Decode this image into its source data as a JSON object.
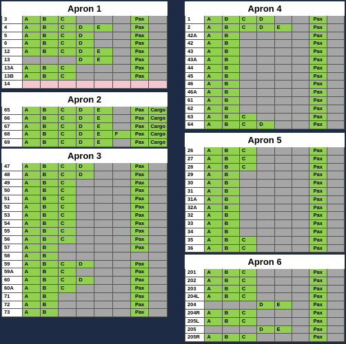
{
  "aprons": [
    {
      "title": "Apron 1",
      "rows": [
        {
          "cells": [
            "3",
            "A",
            "B",
            "C",
            null,
            null,
            null,
            "Pax",
            null
          ]
        },
        {
          "cells": [
            "4",
            "A",
            "B",
            "C",
            "D",
            "E",
            null,
            "Pax",
            null
          ]
        },
        {
          "cells": [
            "5",
            "A",
            "B",
            "C",
            "D",
            null,
            null,
            "Pax",
            null
          ]
        },
        {
          "cells": [
            "6",
            "A",
            "B",
            "C",
            "D",
            null,
            null,
            "Pax",
            null
          ]
        },
        {
          "cells": [
            "12",
            "A",
            "B",
            "C",
            "D",
            "E",
            null,
            "Pax",
            null
          ]
        },
        {
          "cells": [
            "13",
            null,
            null,
            null,
            "D",
            "E",
            null,
            "Pax",
            null
          ]
        },
        {
          "cells": [
            "13A",
            "A",
            "B",
            "C",
            null,
            null,
            null,
            "Pax",
            null
          ]
        },
        {
          "cells": [
            "13B",
            "A",
            "B",
            "C",
            null,
            null,
            null,
            "Pax",
            null
          ]
        },
        {
          "cells": [
            "14",
            null,
            null,
            null,
            null,
            null,
            null,
            null,
            null
          ],
          "fill": "#f4c6ce"
        }
      ]
    },
    {
      "title": "Apron 2",
      "rows": [
        {
          "cells": [
            "65",
            "A",
            "B",
            "C",
            "D",
            "E",
            null,
            "Pax",
            "Cargo"
          ]
        },
        {
          "cells": [
            "66",
            "A",
            "B",
            "C",
            "D",
            "E",
            null,
            "Pax",
            "Cargo"
          ]
        },
        {
          "cells": [
            "67",
            "A",
            "B",
            "C",
            "D",
            "E",
            null,
            "Pax",
            "Cargo"
          ]
        },
        {
          "cells": [
            "68",
            "A",
            "B",
            "C",
            "D",
            "E",
            "F",
            "Pax",
            "Cargo"
          ]
        },
        {
          "cells": [
            "69",
            "A",
            "B",
            "C",
            "D",
            "E",
            null,
            "Pax",
            "Cargo"
          ]
        }
      ]
    },
    {
      "title": "Apron 3",
      "rows": [
        {
          "cells": [
            "47",
            "A",
            "B",
            "C",
            "D",
            null,
            null,
            "Pax",
            null
          ]
        },
        {
          "cells": [
            "48",
            "A",
            "B",
            "C",
            "D",
            null,
            null,
            "Pax",
            null
          ]
        },
        {
          "cells": [
            "49",
            "A",
            "B",
            "C",
            null,
            null,
            null,
            "Pax",
            null
          ]
        },
        {
          "cells": [
            "50",
            "A",
            "B",
            "C",
            null,
            null,
            null,
            "Pax",
            null
          ]
        },
        {
          "cells": [
            "51",
            "A",
            "B",
            "C",
            null,
            null,
            null,
            "Pax",
            null
          ]
        },
        {
          "cells": [
            "52",
            "A",
            "B",
            "C",
            null,
            null,
            null,
            "Pax",
            null
          ]
        },
        {
          "cells": [
            "53",
            "A",
            "B",
            "C",
            null,
            null,
            null,
            "Pax",
            null
          ]
        },
        {
          "cells": [
            "54",
            "A",
            "B",
            "C",
            null,
            null,
            null,
            "Pax",
            null
          ]
        },
        {
          "cells": [
            "55",
            "A",
            "B",
            "C",
            null,
            null,
            null,
            "Pax",
            null
          ]
        },
        {
          "cells": [
            "56",
            "A",
            "B",
            "C",
            null,
            null,
            null,
            "Pax",
            null
          ]
        },
        {
          "cells": [
            "57",
            "A",
            "B",
            null,
            null,
            null,
            null,
            "Pax",
            null
          ]
        },
        {
          "cells": [
            "58",
            "A",
            "B",
            null,
            null,
            null,
            null,
            null,
            null
          ]
        },
        {
          "cells": [
            "59",
            "A",
            "B",
            "C",
            "D",
            null,
            null,
            "Pax",
            null
          ]
        },
        {
          "cells": [
            "59A",
            "A",
            "B",
            "C",
            null,
            null,
            null,
            "Pax",
            null
          ]
        },
        {
          "cells": [
            "60",
            "A",
            "B",
            "C",
            "D",
            null,
            null,
            "Pax",
            null
          ]
        },
        {
          "cells": [
            "60A",
            "A",
            "B",
            "C",
            null,
            null,
            null,
            "Pax",
            null
          ]
        },
        {
          "cells": [
            "71",
            "A",
            "B",
            null,
            null,
            null,
            null,
            "Pax",
            null
          ]
        },
        {
          "cells": [
            "72",
            "A",
            "B",
            null,
            null,
            null,
            null,
            "Pax",
            null
          ]
        },
        {
          "cells": [
            "73",
            "A",
            "B",
            null,
            null,
            null,
            null,
            "Pax",
            null
          ]
        }
      ]
    },
    {
      "title": "Apron 4",
      "rows": [
        {
          "cells": [
            "1",
            "A",
            "B",
            "C",
            "D",
            null,
            null,
            "Pax",
            null
          ]
        },
        {
          "cells": [
            "2",
            "A",
            "B",
            "C",
            "D",
            "E",
            null,
            "Pax",
            null
          ]
        },
        {
          "cells": [
            "42A",
            "A",
            "B",
            null,
            null,
            null,
            null,
            "Pax",
            null
          ]
        },
        {
          "cells": [
            "42",
            "A",
            "B",
            null,
            null,
            null,
            null,
            "Pax",
            null
          ]
        },
        {
          "cells": [
            "43",
            "A",
            "B",
            null,
            null,
            null,
            null,
            "Pax",
            null
          ]
        },
        {
          "cells": [
            "43A",
            "A",
            "B",
            null,
            null,
            null,
            null,
            "Pax",
            null
          ]
        },
        {
          "cells": [
            "44",
            "A",
            "B",
            null,
            null,
            null,
            null,
            "Pax",
            null
          ]
        },
        {
          "cells": [
            "45",
            "A",
            "B",
            null,
            null,
            null,
            null,
            "Pax",
            null
          ]
        },
        {
          "cells": [
            "46",
            "A",
            "B",
            null,
            null,
            null,
            null,
            "Pax",
            null
          ]
        },
        {
          "cells": [
            "46A",
            "A",
            "B",
            null,
            null,
            null,
            null,
            "Pax",
            null
          ]
        },
        {
          "cells": [
            "61",
            "A",
            "B",
            null,
            null,
            null,
            null,
            "Pax",
            null
          ]
        },
        {
          "cells": [
            "62",
            "A",
            "B",
            null,
            null,
            null,
            null,
            "Pax",
            null
          ]
        },
        {
          "cells": [
            "63",
            "A",
            "B",
            "C",
            null,
            null,
            null,
            "Pax",
            null
          ]
        },
        {
          "cells": [
            "64",
            "A",
            "B",
            "C",
            "D",
            null,
            null,
            "Pax",
            null
          ]
        }
      ]
    },
    {
      "title": "Apron 5",
      "rows": [
        {
          "cells": [
            "26",
            "A",
            "B",
            "C",
            null,
            null,
            null,
            "Pax",
            null
          ]
        },
        {
          "cells": [
            "27",
            "A",
            "B",
            "C",
            null,
            null,
            null,
            "Pax",
            null
          ]
        },
        {
          "cells": [
            "28",
            "A",
            "B",
            "C",
            null,
            null,
            null,
            "Pax",
            null
          ]
        },
        {
          "cells": [
            "29",
            "A",
            "B",
            null,
            null,
            null,
            null,
            "Pax",
            null
          ]
        },
        {
          "cells": [
            "30",
            "A",
            "B",
            null,
            null,
            null,
            null,
            "Pax",
            null
          ]
        },
        {
          "cells": [
            "31",
            "A",
            "B",
            null,
            null,
            null,
            null,
            "Pax",
            null
          ]
        },
        {
          "cells": [
            "31A",
            "A",
            "B",
            null,
            null,
            null,
            null,
            "Pax",
            null
          ]
        },
        {
          "cells": [
            "32A",
            "A",
            "B",
            null,
            null,
            null,
            null,
            "Pax",
            null
          ]
        },
        {
          "cells": [
            "32",
            "A",
            "B",
            null,
            null,
            null,
            null,
            "Pax",
            null
          ]
        },
        {
          "cells": [
            "33",
            "A",
            "B",
            null,
            null,
            null,
            null,
            "Pax",
            null
          ]
        },
        {
          "cells": [
            "34",
            "A",
            "B",
            null,
            null,
            null,
            null,
            "Pax",
            null
          ]
        },
        {
          "cells": [
            "35",
            "A",
            "B",
            "C",
            null,
            null,
            null,
            "Pax",
            null
          ]
        },
        {
          "cells": [
            "36",
            "A",
            "B",
            "C",
            null,
            null,
            null,
            "Pax",
            null
          ]
        }
      ]
    },
    {
      "title": "Apron 6",
      "rows": [
        {
          "cells": [
            "201",
            "A",
            "B",
            "C",
            null,
            null,
            null,
            "Pax",
            null
          ]
        },
        {
          "cells": [
            "202",
            "A",
            "B",
            "C",
            null,
            null,
            null,
            "Pax",
            null
          ]
        },
        {
          "cells": [
            "203",
            "A",
            "B",
            "C",
            null,
            null,
            null,
            "Pax",
            null
          ]
        },
        {
          "cells": [
            "204L",
            "A",
            "B",
            "C",
            null,
            null,
            null,
            "Pax",
            null
          ]
        },
        {
          "cells": [
            "204",
            null,
            null,
            null,
            "D",
            "E",
            null,
            "Pax",
            null
          ]
        },
        {
          "cells": [
            "204R",
            "A",
            "B",
            "C",
            null,
            null,
            null,
            "Pax",
            null
          ]
        },
        {
          "cells": [
            "205L",
            "A",
            "B",
            "C",
            null,
            null,
            null,
            "Pax",
            null
          ]
        },
        {
          "cells": [
            "205",
            null,
            null,
            null,
            "D",
            "E",
            null,
            "Pax",
            null
          ]
        },
        {
          "cells": [
            "205R",
            "A",
            "B",
            "C",
            null,
            null,
            null,
            "Pax",
            null
          ]
        }
      ]
    }
  ]
}
